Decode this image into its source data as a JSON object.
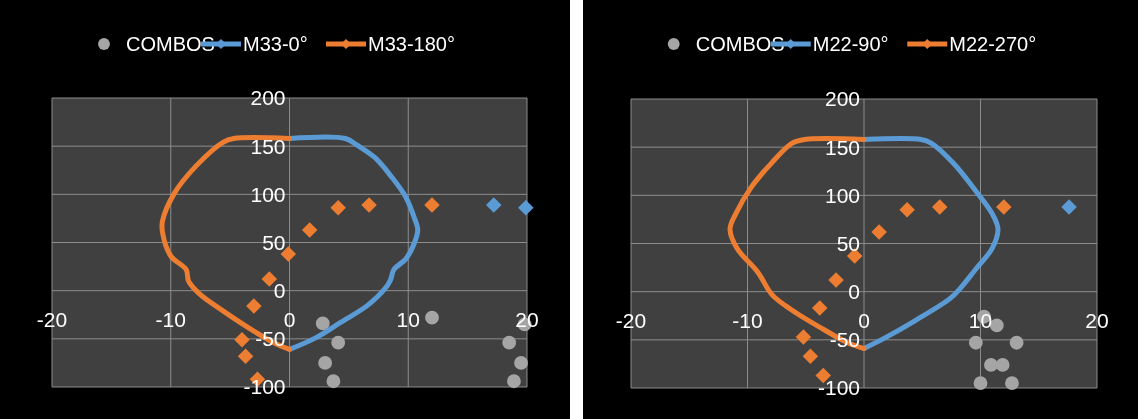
{
  "chart_data": [
    {
      "type": "scatter",
      "legend": "top",
      "grid": true,
      "xlim": [
        -20,
        20
      ],
      "xticks": [
        -20,
        -10,
        0,
        10,
        20
      ],
      "ylim": [
        -100,
        200
      ],
      "yticks": [
        -100,
        -50,
        0,
        50,
        100,
        150,
        200
      ],
      "series": [
        {
          "name": "COMBOS",
          "type": "scatter",
          "marker": "circle",
          "color": "#a5a5a5",
          "x": [
            2.8,
            4.1,
            3,
            3.7,
            12,
            18.5,
            19.5,
            18.9,
            19.8
          ],
          "values": [
            -34,
            -54,
            -75,
            -94,
            -28,
            -54,
            -75,
            -94,
            -35
          ]
        },
        {
          "name": "M33-0°",
          "type": "line",
          "color": "#5b9bd5",
          "x": [
            0,
            4.7,
            5.7,
            7.2,
            8.6,
            9.8,
            10.5,
            10.8,
            10.5,
            9.8,
            8.8,
            8.5,
            8.1,
            6.6,
            4.3,
            2.2,
            0
          ],
          "values": [
            158,
            158,
            151,
            138,
            118,
            97,
            76,
            63,
            49,
            33,
            22,
            11,
            3,
            -15,
            -33,
            -49,
            -61
          ]
        },
        {
          "marker": "diamond",
          "color": "#5b9bd5",
          "x": [
            17.2,
            19.9,
            null
          ],
          "values": [
            89,
            86,
            null
          ]
        },
        {
          "name": "M33-180°",
          "type": "line",
          "color": "#ed7d31",
          "x": [
            0,
            -4.7,
            -5.6,
            -7.9,
            -9.7,
            -10.7,
            -10.7,
            -10,
            -8.7,
            -8.5,
            -7.6,
            -5.6,
            -3,
            -1,
            0
          ],
          "values": [
            158,
            158,
            154,
            129,
            101,
            72,
            61,
            36,
            22,
            10,
            -3,
            -21,
            -42,
            -56,
            -61
          ]
        },
        {
          "marker": "diamond",
          "color": "#ed7d31",
          "x": [
            null,
            -2.7,
            -3.7,
            -4,
            -3,
            -1.7,
            -0.1,
            1.7,
            4.1,
            6.7,
            12
          ],
          "values": [
            null,
            -92,
            -68,
            -51,
            -16,
            12,
            38,
            63,
            86,
            89,
            89
          ]
        }
      ]
    },
    {
      "type": "scatter",
      "legend": "top",
      "grid": true,
      "xlim": [
        -20,
        20
      ],
      "xticks": [
        -20,
        -10,
        0,
        10,
        20
      ],
      "ylim": [
        -100,
        200
      ],
      "yticks": [
        -100,
        -50,
        0,
        50,
        100,
        150,
        200
      ],
      "series": [
        {
          "name": "COMBOS",
          "type": "scatter",
          "marker": "circle",
          "color": "#a5a5a5",
          "x": [
            10.3,
            11.4,
            9.6,
            13.1,
            10.9,
            11.9,
            10,
            12.7
          ],
          "values": [
            -26,
            -35,
            -53,
            -53,
            -76,
            -76,
            -95,
            -95
          ]
        },
        {
          "name": "M22-90°",
          "type": "line",
          "color": "#5b9bd5",
          "x": [
            0,
            4.9,
            5.8,
            7.7,
            9.5,
            11,
            11.5,
            11,
            9.5,
            8.3,
            7.4,
            4.4,
            1.8,
            0
          ],
          "values": [
            158,
            158,
            154,
            133,
            106,
            81,
            65,
            45,
            22,
            4,
            -7,
            -30,
            -48,
            -59
          ]
        },
        {
          "marker": "diamond",
          "color": "#5b9bd5",
          "x": [
            17.6,
            null,
            null
          ],
          "values": [
            88,
            null,
            null
          ]
        },
        {
          "name": "M22-270°",
          "type": "line",
          "color": "#ed7d31",
          "x": [
            0,
            -5.1,
            -6.2,
            -7.9,
            -9.7,
            -11,
            -11.5,
            -10.9,
            -9.1,
            -7.9,
            -6.2,
            -3.5,
            -1.4,
            0
          ],
          "values": [
            158,
            158,
            154,
            134,
            108,
            81,
            65,
            45,
            20,
            -3,
            -19,
            -39,
            -53,
            -59
          ]
        },
        {
          "marker": "diamond",
          "color": "#ed7d31",
          "x": [
            null,
            null,
            -3.5,
            -4.6,
            -5.2,
            -3.8,
            -2.4,
            -0.8,
            1.3,
            3.7,
            6.5,
            12
          ],
          "values": [
            null,
            null,
            -87,
            -67,
            -47,
            -17,
            12,
            37,
            62,
            85,
            88,
            88
          ]
        }
      ]
    }
  ]
}
